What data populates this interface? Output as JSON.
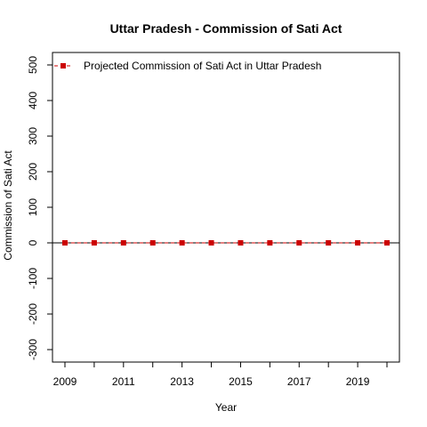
{
  "chart_data": {
    "type": "line",
    "title": "Uttar Pradesh  -  Commission of Sati Act",
    "xlabel": "Year",
    "ylabel": "Commission of Sati Act",
    "x": [
      2009,
      2010,
      2011,
      2012,
      2013,
      2014,
      2015,
      2016,
      2017,
      2018,
      2019,
      2020
    ],
    "x_tick_labels": [
      "2009",
      "2011",
      "2013",
      "2015",
      "2017",
      "2019"
    ],
    "y_tick_labels": [
      "-300",
      "-200",
      "-100",
      "0",
      "100",
      "200",
      "300",
      "400",
      "500"
    ],
    "xlim": [
      2009,
      2020
    ],
    "ylim": [
      -300,
      500
    ],
    "reference_line_y": 0,
    "grid": false,
    "legend_position": "top-left",
    "series": [
      {
        "name": "Projected  Commission of Sati Act  in  Uttar Pradesh",
        "color": "#cc0000",
        "line_style": "dashed",
        "marker": "square",
        "values": [
          0,
          0,
          0,
          0,
          0,
          0,
          0,
          0,
          0,
          0,
          0,
          0
        ]
      }
    ]
  }
}
